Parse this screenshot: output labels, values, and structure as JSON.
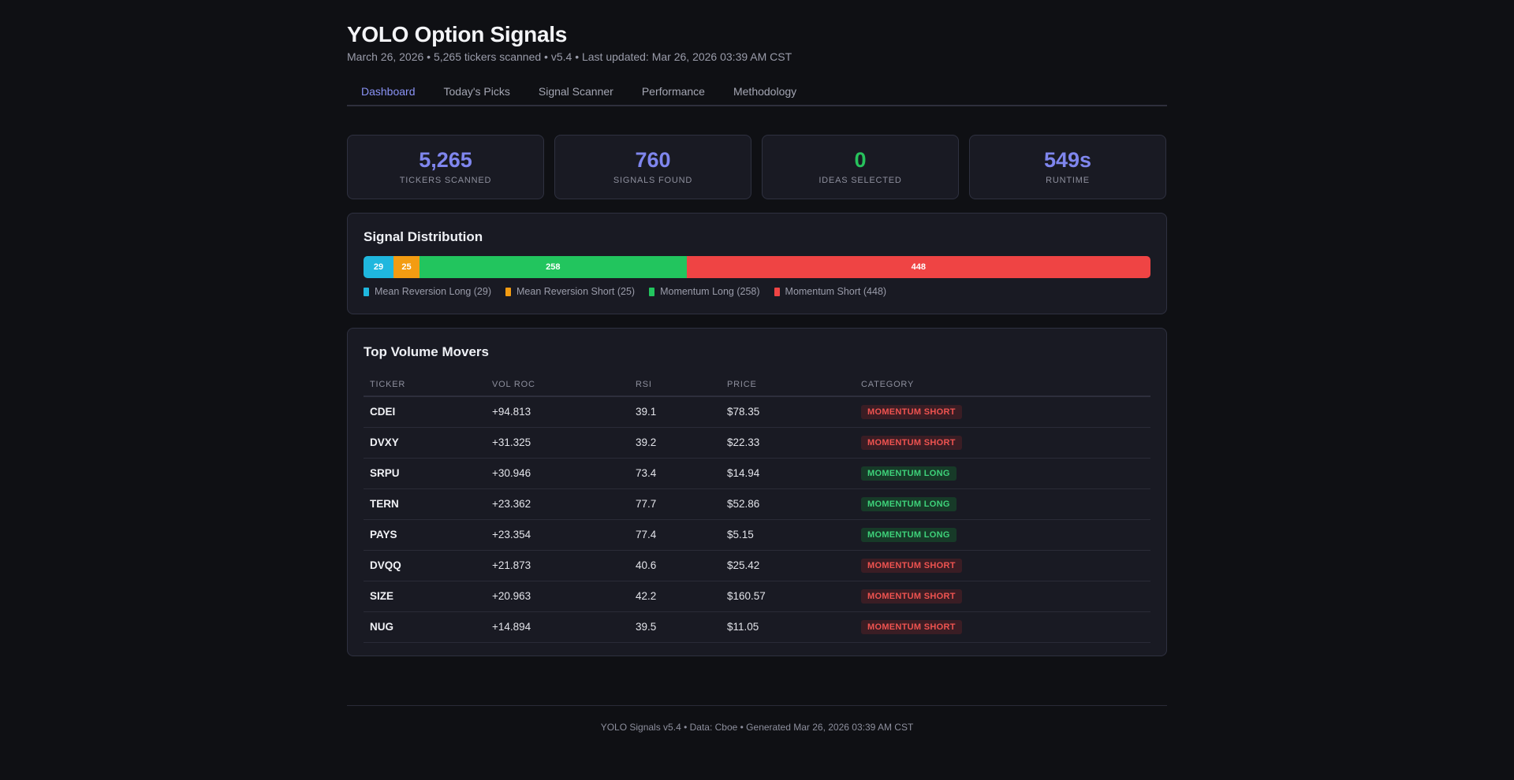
{
  "header": {
    "title": "YOLO Option Signals",
    "subtitle": "March 26, 2026 • 5,265 tickers scanned • v5.4 • Last updated: Mar 26, 2026 03:39 AM CST"
  },
  "tabs": [
    {
      "label": "Dashboard",
      "active": true
    },
    {
      "label": "Today's Picks",
      "active": false
    },
    {
      "label": "Signal Scanner",
      "active": false
    },
    {
      "label": "Performance",
      "active": false
    },
    {
      "label": "Methodology",
      "active": false
    }
  ],
  "stats": [
    {
      "value": "5,265",
      "label": "TICKERS SCANNED",
      "color": "#7f86ee"
    },
    {
      "value": "760",
      "label": "SIGNALS FOUND",
      "color": "#7f86ee"
    },
    {
      "value": "0",
      "label": "IDEAS SELECTED",
      "color": "#27c25c"
    },
    {
      "value": "549s",
      "label": "RUNTIME",
      "color": "#7f86ee"
    }
  ],
  "distribution": {
    "title": "Signal Distribution",
    "segments": [
      {
        "name": "Mean Reversion Long",
        "value": 29,
        "color": "#1fb7de",
        "legend": "Mean Reversion Long (29)"
      },
      {
        "name": "Mean Reversion Short",
        "value": 25,
        "color": "#f39c12",
        "legend": "Mean Reversion Short (25)"
      },
      {
        "name": "Momentum Long",
        "value": 258,
        "color": "#22c55e",
        "legend": "Momentum Long (258)"
      },
      {
        "name": "Momentum Short",
        "value": 448,
        "color": "#ef4444",
        "legend": "Momentum Short (448)"
      }
    ]
  },
  "movers": {
    "title": "Top Volume Movers",
    "columns": [
      "TICKER",
      "VOL ROC",
      "RSI",
      "PRICE",
      "CATEGORY"
    ],
    "rows": [
      {
        "ticker": "CDEI",
        "vol_roc": "+94.813",
        "rsi": "39.1",
        "price": "$78.35",
        "category": "MOMENTUM SHORT",
        "kind": "short"
      },
      {
        "ticker": "DVXY",
        "vol_roc": "+31.325",
        "rsi": "39.2",
        "price": "$22.33",
        "category": "MOMENTUM SHORT",
        "kind": "short"
      },
      {
        "ticker": "SRPU",
        "vol_roc": "+30.946",
        "rsi": "73.4",
        "price": "$14.94",
        "category": "MOMENTUM LONG",
        "kind": "long"
      },
      {
        "ticker": "TERN",
        "vol_roc": "+23.362",
        "rsi": "77.7",
        "price": "$52.86",
        "category": "MOMENTUM LONG",
        "kind": "long"
      },
      {
        "ticker": "PAYS",
        "vol_roc": "+23.354",
        "rsi": "77.4",
        "price": "$5.15",
        "category": "MOMENTUM LONG",
        "kind": "long"
      },
      {
        "ticker": "DVQQ",
        "vol_roc": "+21.873",
        "rsi": "40.6",
        "price": "$25.42",
        "category": "MOMENTUM SHORT",
        "kind": "short"
      },
      {
        "ticker": "SIZE",
        "vol_roc": "+20.963",
        "rsi": "42.2",
        "price": "$160.57",
        "category": "MOMENTUM SHORT",
        "kind": "short"
      },
      {
        "ticker": "NUG",
        "vol_roc": "+14.894",
        "rsi": "39.5",
        "price": "$11.05",
        "category": "MOMENTUM SHORT",
        "kind": "short"
      }
    ]
  },
  "footer": "YOLO Signals v5.4 • Data: Cboe • Generated Mar 26, 2026 03:39 AM CST"
}
